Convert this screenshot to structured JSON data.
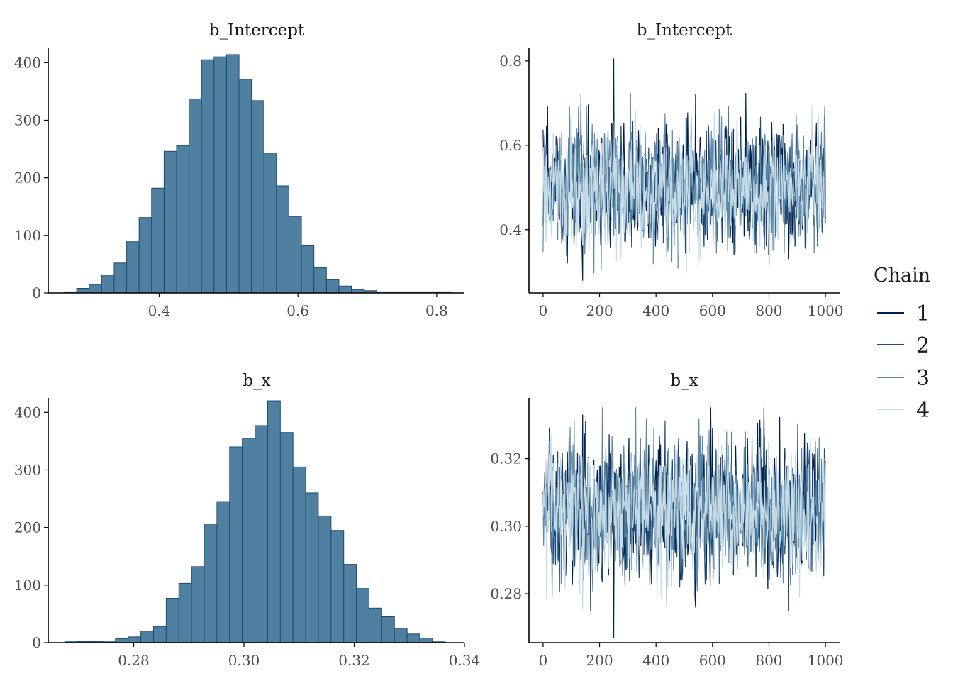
{
  "chart_data": [
    {
      "type": "bar",
      "title": "b_Intercept",
      "bins": [
        0.263,
        0.281,
        0.299,
        0.317,
        0.335,
        0.353,
        0.371,
        0.389,
        0.407,
        0.425,
        0.443,
        0.461,
        0.479,
        0.497,
        0.515,
        0.533,
        0.551,
        0.569,
        0.587,
        0.605,
        0.623,
        0.641,
        0.659,
        0.677,
        0.695,
        0.713,
        0.731,
        0.749,
        0.767,
        0.785,
        0.803
      ],
      "values": [
        2,
        8,
        14,
        31,
        52,
        89,
        131,
        182,
        246,
        256,
        337,
        405,
        410,
        414,
        371,
        334,
        243,
        186,
        133,
        82,
        44,
        23,
        12,
        6,
        4,
        2,
        2,
        2,
        2,
        2,
        2
      ],
      "xticks": [
        "0.4",
        "0.6",
        "0.8"
      ],
      "xtick_values": [
        0.4,
        0.6,
        0.8
      ],
      "yticks": [
        "0",
        "100",
        "200",
        "300",
        "400"
      ],
      "ytick_values": [
        0,
        100,
        200,
        300,
        400
      ],
      "xlim": [
        0.24,
        0.84
      ],
      "ylim": [
        0,
        425
      ]
    },
    {
      "type": "line",
      "title": "b_Intercept",
      "iterations": 1000,
      "xticks": [
        "0",
        "200",
        "400",
        "600",
        "800",
        "1000"
      ],
      "xtick_values": [
        0,
        200,
        400,
        600,
        800,
        1000
      ],
      "yticks": [
        "0.4",
        "0.6",
        "0.8"
      ],
      "ytick_values": [
        0.4,
        0.6,
        0.8
      ],
      "xlim": [
        -50,
        1050
      ],
      "ylim": [
        0.25,
        0.83
      ],
      "mean": 0.5,
      "sd": 0.072,
      "spikes": [
        {
          "iter": 250,
          "value": 0.805
        },
        {
          "iter": 140,
          "value": 0.28
        },
        {
          "iter": 540,
          "value": 0.72
        }
      ]
    },
    {
      "type": "bar",
      "title": "b_x",
      "bins": [
        0.2675,
        0.2698,
        0.2721,
        0.2744,
        0.2767,
        0.279,
        0.2813,
        0.2836,
        0.2859,
        0.2882,
        0.2905,
        0.2928,
        0.2951,
        0.2974,
        0.2997,
        0.302,
        0.3043,
        0.3066,
        0.3089,
        0.3112,
        0.3135,
        0.3158,
        0.3181,
        0.3204,
        0.3227,
        0.325,
        0.3273,
        0.3296,
        0.3319,
        0.3342
      ],
      "values": [
        3,
        2,
        2,
        3,
        7,
        10,
        20,
        28,
        77,
        103,
        132,
        206,
        245,
        340,
        355,
        377,
        420,
        365,
        305,
        260,
        220,
        195,
        136,
        94,
        60,
        45,
        25,
        15,
        8,
        3
      ],
      "xticks": [
        "0.28",
        "0.30",
        "0.32",
        "0.34"
      ],
      "xtick_values": [
        0.28,
        0.3,
        0.32,
        0.34
      ],
      "yticks": [
        "0",
        "100",
        "200",
        "300",
        "400"
      ],
      "ytick_values": [
        0,
        100,
        200,
        300,
        400
      ],
      "xlim": [
        0.2645,
        0.34
      ],
      "ylim": [
        0,
        425
      ]
    },
    {
      "type": "line",
      "title": "b_x",
      "iterations": 1000,
      "xticks": [
        "0",
        "200",
        "400",
        "600",
        "800",
        "1000"
      ],
      "xtick_values": [
        0,
        200,
        400,
        600,
        800,
        1000
      ],
      "yticks": [
        "0.28",
        "0.30",
        "0.32"
      ],
      "ytick_values": [
        0.28,
        0.3,
        0.32
      ],
      "xlim": [
        -50,
        1050
      ],
      "ylim": [
        0.2655,
        0.338
      ],
      "mean": 0.305,
      "sd": 0.0097,
      "spikes": [
        {
          "iter": 250,
          "value": 0.267
        },
        {
          "iter": 140,
          "value": 0.333
        },
        {
          "iter": 540,
          "value": 0.276
        }
      ]
    }
  ],
  "legend": {
    "title": "Chain",
    "items": [
      {
        "label": "1",
        "color": "#011f4b"
      },
      {
        "label": "2",
        "color": "#1e4a75"
      },
      {
        "label": "3",
        "color": "#5e89a6"
      },
      {
        "label": "4",
        "color": "#c6dbe8"
      }
    ]
  },
  "colors": {
    "hist_fill": "#4f809f",
    "hist_stroke": "#1e4a75",
    "axis": "#000000"
  }
}
